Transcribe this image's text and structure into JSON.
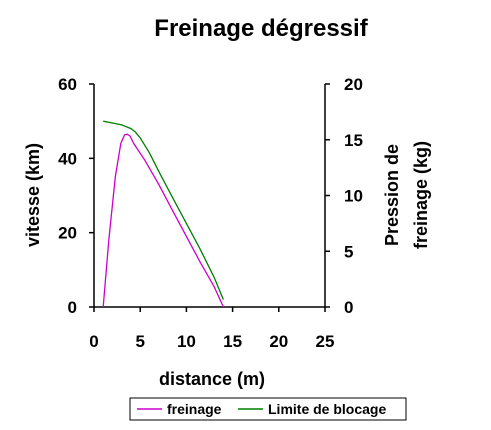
{
  "chart_data": {
    "type": "line",
    "title": "Freinage dégressif",
    "xlabel": "distance (m)",
    "ylabel_left": "vitesse (km)",
    "ylabel_right_lines": [
      "Pression de",
      "freinage (kg)"
    ],
    "xlim": [
      0,
      25
    ],
    "ylim_left": [
      0,
      60
    ],
    "ylim_right": [
      0,
      20
    ],
    "x_ticks": [
      "0",
      "5",
      "10",
      "15",
      "20",
      "25"
    ],
    "y_ticks_left": [
      "0",
      "20",
      "40",
      "60"
    ],
    "y_ticks_right": [
      "0",
      "5",
      "10",
      "15",
      "20"
    ],
    "grid": false,
    "legend_position": "bottom",
    "series": [
      {
        "name": "freinage",
        "color": "#cc00cc",
        "axis": "left",
        "x": [
          1,
          1.6,
          2.3,
          2.9,
          3.3,
          3.6,
          3.9,
          4.3,
          5.5,
          7,
          8.5,
          10,
          11.5,
          13,
          14
        ],
        "y": [
          0,
          18,
          35,
          44,
          46.3,
          46.5,
          46,
          44,
          39.5,
          33,
          26,
          19,
          12,
          5.5,
          0
        ]
      },
      {
        "name": "Limite de blocage",
        "color": "#008000",
        "axis": "left",
        "x": [
          1,
          2,
          3,
          4,
          4.5,
          5,
          5.5,
          6,
          7,
          8.5,
          10,
          11.5,
          13,
          14
        ],
        "y": [
          50,
          49.5,
          49,
          48,
          47,
          45.5,
          43.5,
          41.5,
          36.5,
          29.5,
          22.5,
          15.5,
          8,
          2
        ]
      }
    ]
  }
}
